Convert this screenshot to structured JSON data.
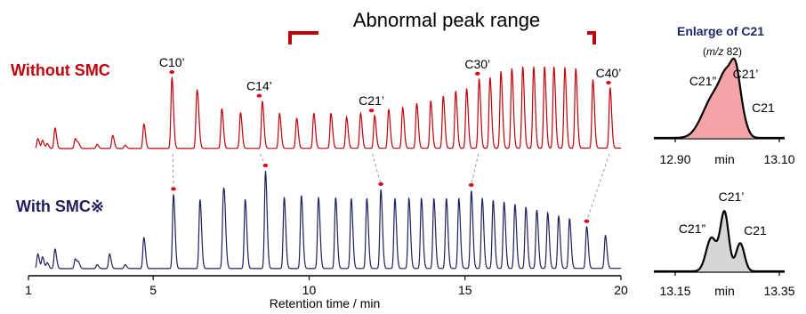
{
  "chart_data": {
    "type": "line",
    "main": {
      "annotation": "Abnormal peak range",
      "x_axis_label": "Retention time / min",
      "x_ticks": [
        1,
        5,
        10,
        15,
        20
      ],
      "xlim": [
        1,
        20
      ],
      "series": [
        {
          "name": "Without SMC",
          "color": "#c0000a",
          "peak_labels": [
            {
              "text": "C10’",
              "x": 5.6
            },
            {
              "text": "C14’",
              "x": 8.4
            },
            {
              "text": "C21’",
              "x": 12.0
            },
            {
              "text": "C30’",
              "x": 15.4
            },
            {
              "text": "C40’",
              "x": 19.6
            }
          ],
          "peaks": [
            {
              "x": 1.3,
              "h": 0.12
            },
            {
              "x": 1.45,
              "h": 0.1
            },
            {
              "x": 1.6,
              "h": 0.06
            },
            {
              "x": 1.85,
              "h": 0.25
            },
            {
              "x": 2.5,
              "h": 0.12
            },
            {
              "x": 2.6,
              "h": 0.06
            },
            {
              "x": 3.2,
              "h": 0.05
            },
            {
              "x": 3.7,
              "h": 0.16
            },
            {
              "x": 4.1,
              "h": 0.04
            },
            {
              "x": 4.7,
              "h": 0.3
            },
            {
              "x": 5.6,
              "h": 0.87
            },
            {
              "x": 6.4,
              "h": 0.66
            },
            {
              "x": 6.45,
              "h": 0.15
            },
            {
              "x": 7.2,
              "h": 0.49
            },
            {
              "x": 7.8,
              "h": 0.44
            },
            {
              "x": 8.5,
              "h": 0.58
            },
            {
              "x": 9.05,
              "h": 0.43
            },
            {
              "x": 9.6,
              "h": 0.37
            },
            {
              "x": 10.15,
              "h": 0.43
            },
            {
              "x": 10.7,
              "h": 0.43
            },
            {
              "x": 11.2,
              "h": 0.38
            },
            {
              "x": 11.65,
              "h": 0.43
            },
            {
              "x": 12.1,
              "h": 0.4
            },
            {
              "x": 12.55,
              "h": 0.48
            },
            {
              "x": 13.0,
              "h": 0.5
            },
            {
              "x": 13.45,
              "h": 0.55
            },
            {
              "x": 13.9,
              "h": 0.58
            },
            {
              "x": 14.3,
              "h": 0.64
            },
            {
              "x": 14.7,
              "h": 0.7
            },
            {
              "x": 15.05,
              "h": 0.73
            },
            {
              "x": 15.45,
              "h": 0.85
            },
            {
              "x": 15.8,
              "h": 0.87
            },
            {
              "x": 16.15,
              "h": 0.94
            },
            {
              "x": 16.5,
              "h": 0.98
            },
            {
              "x": 16.85,
              "h": 1.0
            },
            {
              "x": 17.2,
              "h": 1.0
            },
            {
              "x": 17.55,
              "h": 1.0
            },
            {
              "x": 17.85,
              "h": 1.0
            },
            {
              "x": 18.2,
              "h": 0.99
            },
            {
              "x": 18.55,
              "h": 0.98
            },
            {
              "x": 19.1,
              "h": 0.84
            },
            {
              "x": 19.65,
              "h": 0.74
            }
          ]
        },
        {
          "name": "With SMC※",
          "color": "#1f1f5e",
          "peaks": [
            {
              "x": 1.3,
              "h": 0.15
            },
            {
              "x": 1.45,
              "h": 0.12
            },
            {
              "x": 1.6,
              "h": 0.06
            },
            {
              "x": 1.85,
              "h": 0.2
            },
            {
              "x": 2.5,
              "h": 0.1
            },
            {
              "x": 2.6,
              "h": 0.06
            },
            {
              "x": 3.2,
              "h": 0.04
            },
            {
              "x": 3.6,
              "h": 0.15
            },
            {
              "x": 4.1,
              "h": 0.04
            },
            {
              "x": 4.7,
              "h": 0.32
            },
            {
              "x": 5.65,
              "h": 0.76
            },
            {
              "x": 6.5,
              "h": 0.71
            },
            {
              "x": 7.25,
              "h": 0.72
            },
            {
              "x": 7.3,
              "h": 0.25
            },
            {
              "x": 7.95,
              "h": 0.71
            },
            {
              "x": 8.6,
              "h": 1.0
            },
            {
              "x": 9.2,
              "h": 0.73
            },
            {
              "x": 9.75,
              "h": 0.75
            },
            {
              "x": 10.3,
              "h": 0.73
            },
            {
              "x": 10.85,
              "h": 0.73
            },
            {
              "x": 11.35,
              "h": 0.72
            },
            {
              "x": 11.85,
              "h": 0.72
            },
            {
              "x": 12.3,
              "h": 0.81
            },
            {
              "x": 12.75,
              "h": 0.72
            },
            {
              "x": 13.2,
              "h": 0.72
            },
            {
              "x": 13.6,
              "h": 0.72
            },
            {
              "x": 14.0,
              "h": 0.72
            },
            {
              "x": 14.4,
              "h": 0.72
            },
            {
              "x": 14.8,
              "h": 0.72
            },
            {
              "x": 15.2,
              "h": 0.8
            },
            {
              "x": 15.55,
              "h": 0.72
            },
            {
              "x": 15.9,
              "h": 0.7
            },
            {
              "x": 16.25,
              "h": 0.68
            },
            {
              "x": 16.6,
              "h": 0.66
            },
            {
              "x": 16.95,
              "h": 0.63
            },
            {
              "x": 17.3,
              "h": 0.6
            },
            {
              "x": 17.65,
              "h": 0.57
            },
            {
              "x": 18.0,
              "h": 0.54
            },
            {
              "x": 18.35,
              "h": 0.51
            },
            {
              "x": 18.9,
              "h": 0.43
            },
            {
              "x": 19.5,
              "h": 0.34
            }
          ]
        }
      ],
      "links": [
        {
          "top": 5.6,
          "bottom": 5.65
        },
        {
          "top": 8.4,
          "bottom": 8.6
        },
        {
          "top": 12.0,
          "bottom": 12.3
        },
        {
          "top": 15.4,
          "bottom": 15.2
        },
        {
          "top": 19.6,
          "bottom": 18.9
        }
      ]
    },
    "insets": [
      {
        "title": "Enlarge of C21",
        "subtitle_prefix": "(",
        "subtitle_italic": "m/z",
        "subtitle_suffix": " 82)",
        "fill": "#f4a3a6",
        "x_ticks": [
          "12.90",
          "min",
          "13.10"
        ],
        "xlim": [
          12.86,
          13.12
        ],
        "peaks": [
          {
            "x": 12.965,
            "h": 0.35,
            "w": 0.018
          },
          {
            "x": 12.985,
            "h": 0.45,
            "w": 0.015
          },
          {
            "x": 13.005,
            "h": 0.78,
            "w": 0.012
          },
          {
            "x": 13.022,
            "h": 0.8,
            "w": 0.009
          },
          {
            "x": 13.035,
            "h": 0.3,
            "w": 0.01
          }
        ],
        "labels": [
          {
            "text": "C21”",
            "x": 12.97
          },
          {
            "text": "C21’",
            "x": 13.04
          },
          {
            "text": "C21",
            "x": 13.07
          }
        ]
      },
      {
        "fill": "#d6d6d6",
        "x_ticks": [
          "13.15",
          "min",
          "13.35"
        ],
        "xlim": [
          13.12,
          13.37
        ],
        "peaks": [
          {
            "x": 13.23,
            "h": 0.5,
            "w": 0.01
          },
          {
            "x": 13.255,
            "h": 0.88,
            "w": 0.008
          },
          {
            "x": 13.285,
            "h": 0.42,
            "w": 0.008
          }
        ],
        "labels": [
          {
            "text": "C21”",
            "x": 13.225
          },
          {
            "text": "C21’",
            "x": 13.26
          },
          {
            "text": "C21",
            "x": 13.305
          }
        ]
      }
    ]
  }
}
